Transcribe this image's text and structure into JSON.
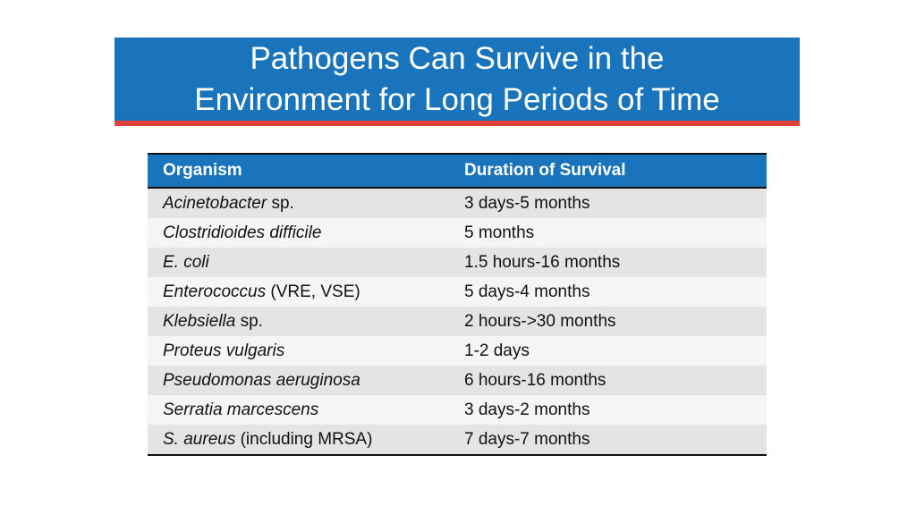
{
  "title": {
    "line1": "Pathogens Can Survive in the",
    "line2": "Environment for Long Periods of Time"
  },
  "table": {
    "headers": {
      "organism": "Organism",
      "duration": "Duration of Survival"
    },
    "rows": [
      {
        "organism_italic": "Acinetobacter",
        "organism_rest": " sp.",
        "duration": "3 days-5 months"
      },
      {
        "organism_italic": "Clostridioides difficile",
        "organism_rest": "",
        "duration": "5 months"
      },
      {
        "organism_italic": "E. coli",
        "organism_rest": "",
        "duration": "1.5 hours-16 months"
      },
      {
        "organism_italic": "Enterococcus",
        "organism_rest": " (VRE, VSE)",
        "duration": "5 days-4 months"
      },
      {
        "organism_italic": "Klebsiella",
        "organism_rest": " sp.",
        "duration": "2 hours->30 months"
      },
      {
        "organism_italic": "Proteus vulgaris",
        "organism_rest": "",
        "duration": "1-2 days"
      },
      {
        "organism_italic": "Pseudomonas aeruginosa",
        "organism_rest": "",
        "duration": "6 hours-16 months"
      },
      {
        "organism_italic": "Serratia marcescens",
        "organism_rest": "",
        "duration": "3 days-2 months"
      },
      {
        "organism_italic": "S. aureus",
        "organism_rest": " (including MRSA)",
        "duration": "7 days-7 months"
      }
    ]
  },
  "colors": {
    "banner": "#1a74bb",
    "accent_line": "#e0413b",
    "row_shaded": "#e4e4e4",
    "row_light": "#f5f5f5"
  }
}
